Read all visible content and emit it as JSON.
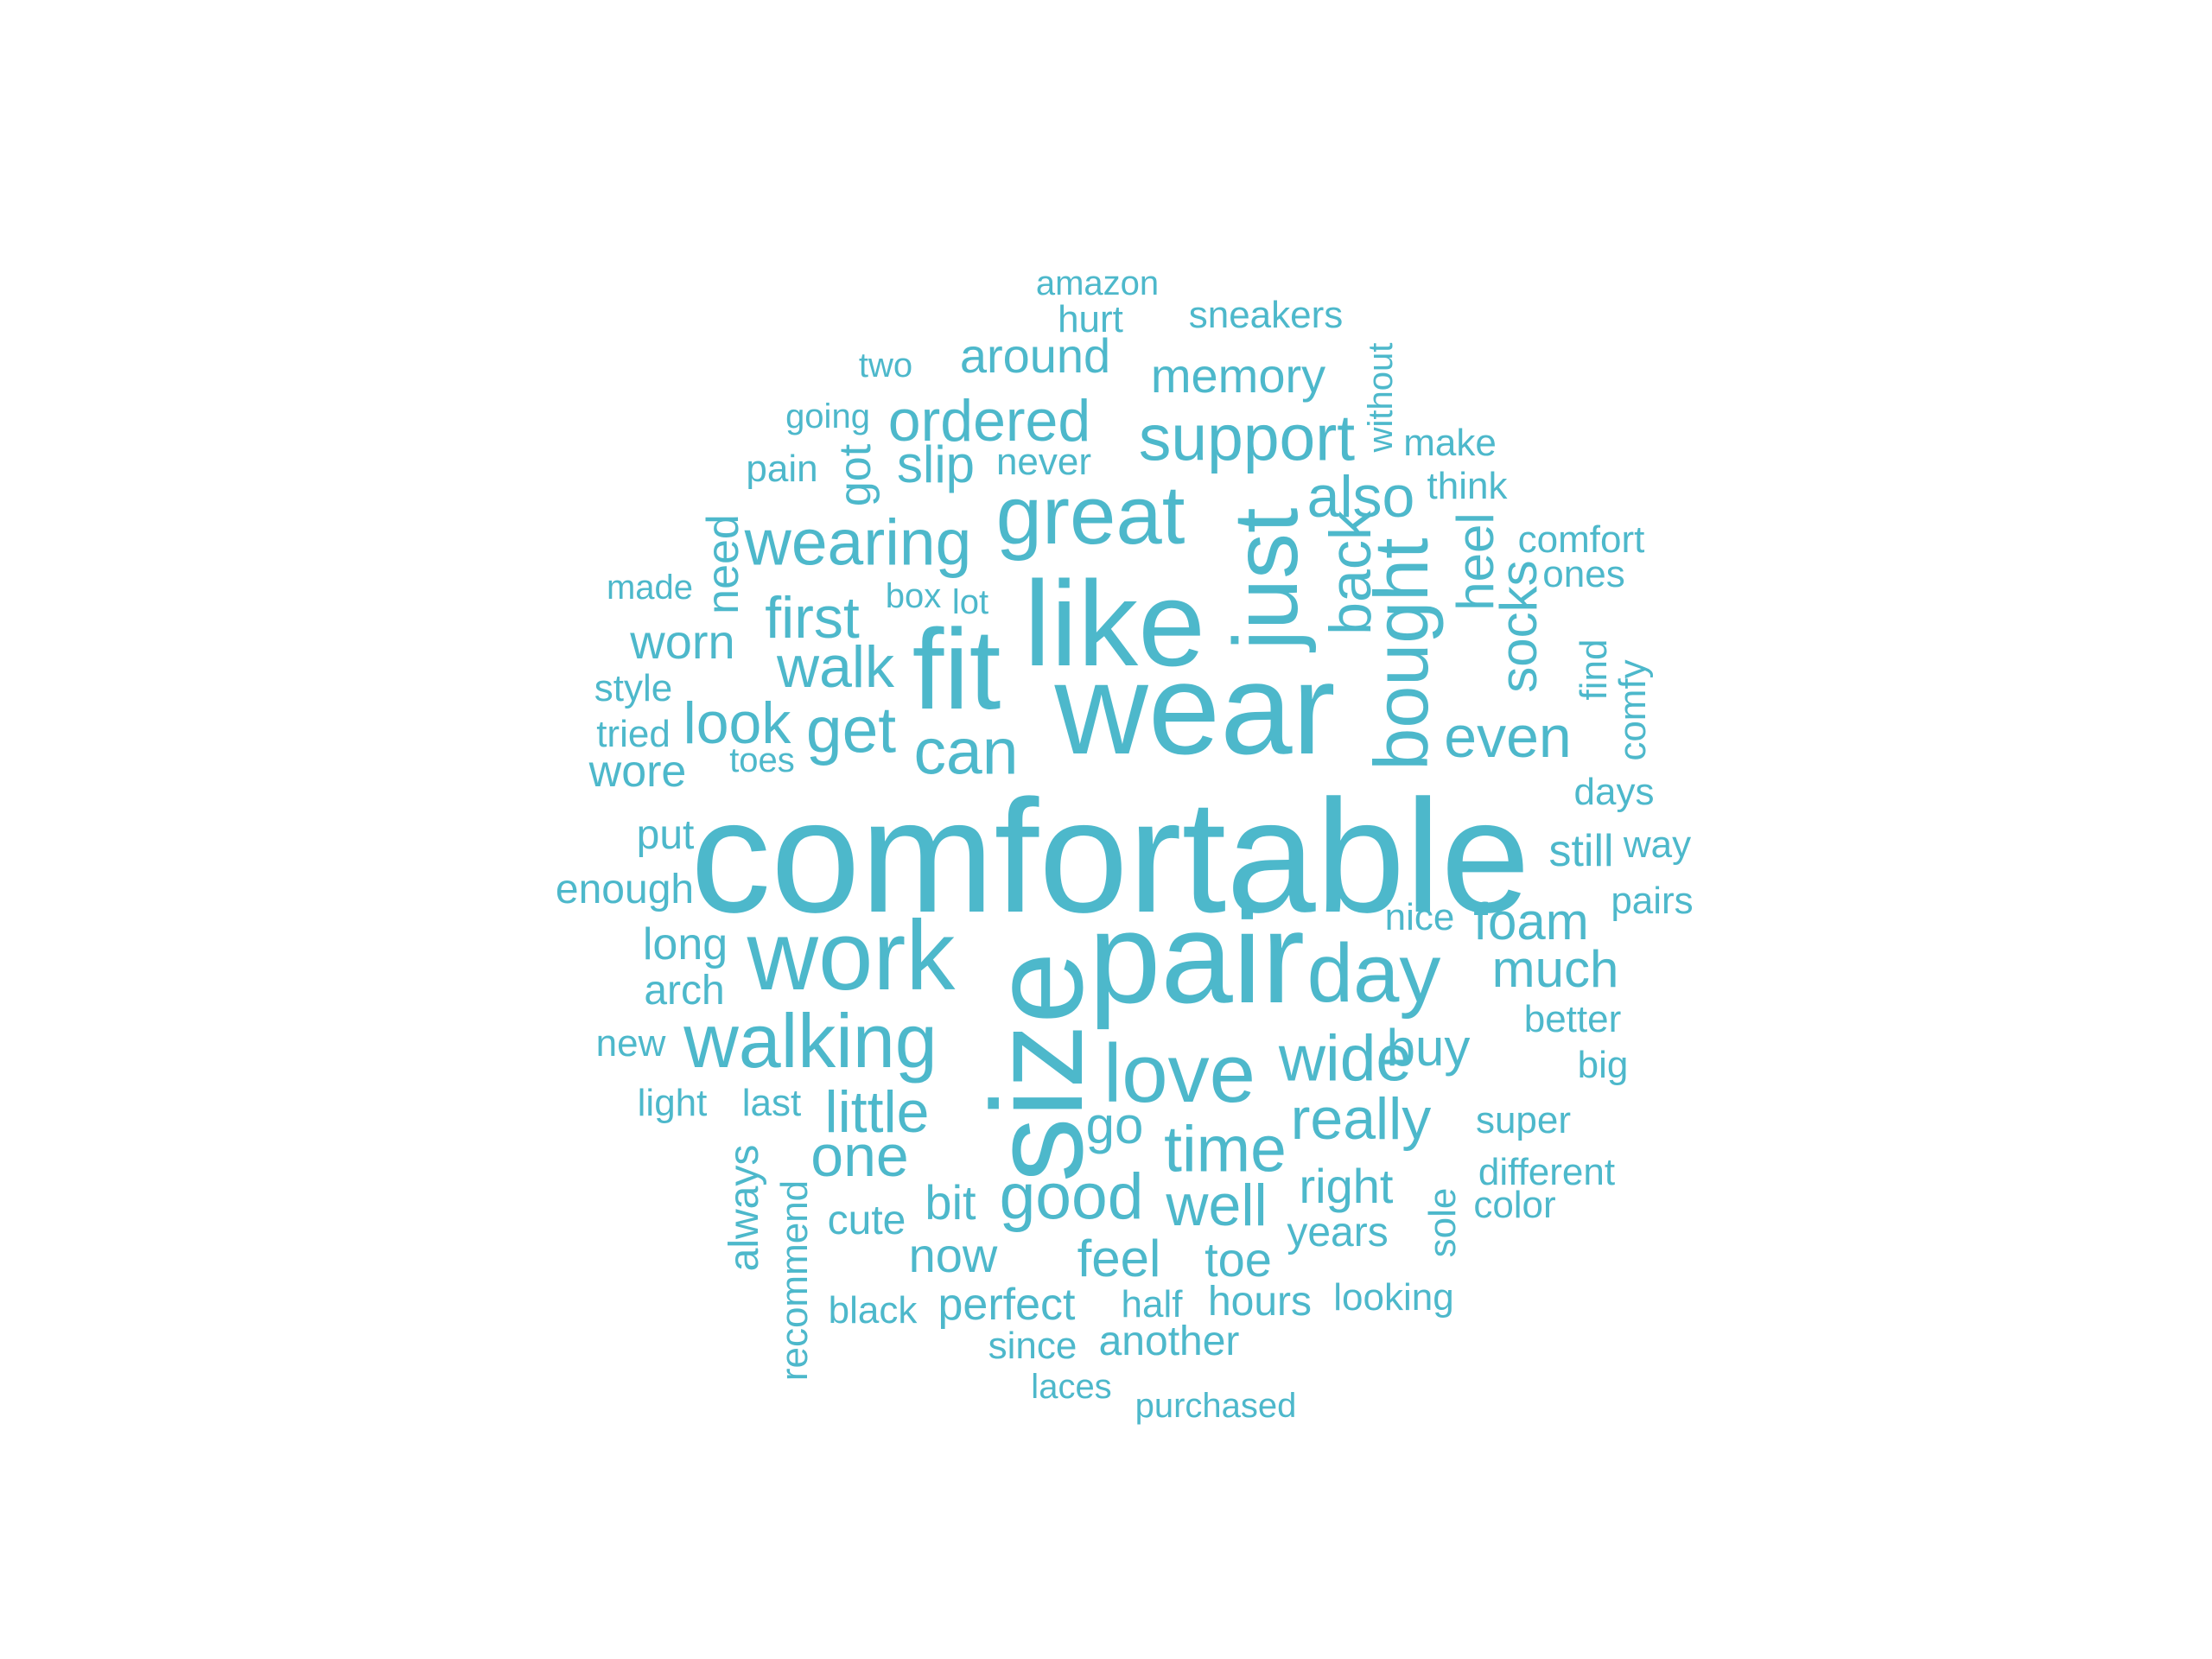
{
  "colors": {
    "background": "#ffffff",
    "word": "#4db8cb"
  },
  "words": [
    {
      "text": "comfortable",
      "orientation": "horizontal",
      "rank": 1
    },
    {
      "text": "wear",
      "orientation": "horizontal",
      "rank": 2
    },
    {
      "text": "pair",
      "orientation": "horizontal",
      "rank": 3
    },
    {
      "text": "size",
      "orientation": "vertical",
      "rank": 4
    },
    {
      "text": "like",
      "orientation": "horizontal",
      "rank": 5
    },
    {
      "text": "fit",
      "orientation": "horizontal",
      "rank": 6
    },
    {
      "text": "work",
      "orientation": "horizontal",
      "rank": 7
    },
    {
      "text": "just",
      "orientation": "vertical",
      "rank": 8
    },
    {
      "text": "day",
      "orientation": "horizontal",
      "rank": 9
    },
    {
      "text": "great",
      "orientation": "horizontal",
      "rank": 10
    },
    {
      "text": "love",
      "orientation": "horizontal",
      "rank": 11
    },
    {
      "text": "walking",
      "orientation": "horizontal",
      "rank": 12
    },
    {
      "text": "bought",
      "orientation": "vertical",
      "rank": 13
    },
    {
      "text": "wearing",
      "orientation": "horizontal",
      "rank": 14
    },
    {
      "text": "support",
      "orientation": "horizontal",
      "rank": 15
    },
    {
      "text": "time",
      "orientation": "horizontal",
      "rank": 16
    },
    {
      "text": "good",
      "orientation": "horizontal",
      "rank": 17
    },
    {
      "text": "wide",
      "orientation": "horizontal",
      "rank": 18
    },
    {
      "text": "get",
      "orientation": "horizontal",
      "rank": 19
    },
    {
      "text": "can",
      "orientation": "horizontal",
      "rank": 20
    },
    {
      "text": "walk",
      "orientation": "horizontal",
      "rank": 21
    },
    {
      "text": "first",
      "orientation": "horizontal",
      "rank": 22
    },
    {
      "text": "ordered",
      "orientation": "horizontal",
      "rank": 23
    },
    {
      "text": "really",
      "orientation": "horizontal",
      "rank": 24
    },
    {
      "text": "well",
      "orientation": "horizontal",
      "rank": 25
    },
    {
      "text": "back",
      "orientation": "vertical",
      "rank": 26
    },
    {
      "text": "also",
      "orientation": "horizontal",
      "rank": 27
    },
    {
      "text": "little",
      "orientation": "horizontal",
      "rank": 28
    },
    {
      "text": "one",
      "orientation": "horizontal",
      "rank": 29
    },
    {
      "text": "even",
      "orientation": "horizontal",
      "rank": 30
    },
    {
      "text": "look",
      "orientation": "horizontal",
      "rank": 31
    },
    {
      "text": "foam",
      "orientation": "horizontal",
      "rank": 32
    },
    {
      "text": "much",
      "orientation": "horizontal",
      "rank": 33
    },
    {
      "text": "buy",
      "orientation": "horizontal",
      "rank": 34
    },
    {
      "text": "go",
      "orientation": "horizontal",
      "rank": 35
    },
    {
      "text": "around",
      "orientation": "horizontal",
      "rank": 36
    },
    {
      "text": "memory",
      "orientation": "horizontal",
      "rank": 37
    },
    {
      "text": "slip",
      "orientation": "horizontal",
      "rank": 38
    },
    {
      "text": "socks",
      "orientation": "vertical",
      "rank": 39
    },
    {
      "text": "heel",
      "orientation": "vertical",
      "rank": 40
    },
    {
      "text": "worn",
      "orientation": "horizontal",
      "rank": 41
    },
    {
      "text": "right",
      "orientation": "horizontal",
      "rank": 42
    },
    {
      "text": "feel",
      "orientation": "horizontal",
      "rank": 43
    },
    {
      "text": "toe",
      "orientation": "horizontal",
      "rank": 44
    },
    {
      "text": "now",
      "orientation": "horizontal",
      "rank": 45
    },
    {
      "text": "bit",
      "orientation": "horizontal",
      "rank": 46
    },
    {
      "text": "perfect",
      "orientation": "horizontal",
      "rank": 47
    },
    {
      "text": "still",
      "orientation": "horizontal",
      "rank": 48
    },
    {
      "text": "long",
      "orientation": "horizontal",
      "rank": 49
    },
    {
      "text": "got",
      "orientation": "vertical",
      "rank": 50
    },
    {
      "text": "need",
      "orientation": "vertical",
      "rank": 51
    },
    {
      "text": "wore",
      "orientation": "horizontal",
      "rank": 52
    },
    {
      "text": "arch",
      "orientation": "horizontal",
      "rank": 53
    },
    {
      "text": "put",
      "orientation": "horizontal",
      "rank": 54
    },
    {
      "text": "years",
      "orientation": "horizontal",
      "rank": 55
    },
    {
      "text": "hours",
      "orientation": "horizontal",
      "rank": 56
    },
    {
      "text": "another",
      "orientation": "horizontal",
      "rank": 57
    },
    {
      "text": "cute",
      "orientation": "horizontal",
      "rank": 58
    },
    {
      "text": "always",
      "orientation": "vertical",
      "rank": 59
    },
    {
      "text": "enough",
      "orientation": "horizontal",
      "rank": 60
    },
    {
      "text": "looking",
      "orientation": "horizontal",
      "rank": 61
    },
    {
      "text": "comfort",
      "orientation": "horizontal",
      "rank": 62
    },
    {
      "text": "sneakers",
      "orientation": "horizontal",
      "rank": 63
    },
    {
      "text": "different",
      "orientation": "horizontal",
      "rank": 64
    },
    {
      "text": "last",
      "orientation": "horizontal",
      "rank": 65
    },
    {
      "text": "nice",
      "orientation": "horizontal",
      "rank": 66
    },
    {
      "text": "better",
      "orientation": "horizontal",
      "rank": 67
    },
    {
      "text": "super",
      "orientation": "horizontal",
      "rank": 68
    },
    {
      "text": "days",
      "orientation": "horizontal",
      "rank": 69
    },
    {
      "text": "pairs",
      "orientation": "horizontal",
      "rank": 70
    },
    {
      "text": "think",
      "orientation": "horizontal",
      "rank": 71
    },
    {
      "text": "make",
      "orientation": "horizontal",
      "rank": 72
    },
    {
      "text": "pain",
      "orientation": "horizontal",
      "rank": 73
    },
    {
      "text": "never",
      "orientation": "horizontal",
      "rank": 74
    },
    {
      "text": "tried",
      "orientation": "horizontal",
      "rank": 75
    },
    {
      "text": "style",
      "orientation": "horizontal",
      "rank": 76
    },
    {
      "text": "ones",
      "orientation": "horizontal",
      "rank": 77
    },
    {
      "text": "find",
      "orientation": "vertical",
      "rank": 78
    },
    {
      "text": "comfy",
      "orientation": "vertical",
      "rank": 79
    },
    {
      "text": "color",
      "orientation": "horizontal",
      "rank": 80
    },
    {
      "text": "sole",
      "orientation": "vertical",
      "rank": 81
    },
    {
      "text": "black",
      "orientation": "horizontal",
      "rank": 82
    },
    {
      "text": "since",
      "orientation": "horizontal",
      "rank": 83
    },
    {
      "text": "half",
      "orientation": "horizontal",
      "rank": 84
    },
    {
      "text": "recommend",
      "orientation": "vertical",
      "rank": 85
    },
    {
      "text": "light",
      "orientation": "horizontal",
      "rank": 86
    },
    {
      "text": "new",
      "orientation": "horizontal",
      "rank": 87
    },
    {
      "text": "big",
      "orientation": "horizontal",
      "rank": 88
    },
    {
      "text": "way",
      "orientation": "horizontal",
      "rank": 89
    },
    {
      "text": "made",
      "orientation": "horizontal",
      "rank": 90
    },
    {
      "text": "box",
      "orientation": "horizontal",
      "rank": 91
    },
    {
      "text": "lot",
      "orientation": "horizontal",
      "rank": 92
    },
    {
      "text": "toes",
      "orientation": "horizontal",
      "rank": 93
    },
    {
      "text": "two",
      "orientation": "horizontal",
      "rank": 94
    },
    {
      "text": "going",
      "orientation": "horizontal",
      "rank": 95
    },
    {
      "text": "hurt",
      "orientation": "horizontal",
      "rank": 96
    },
    {
      "text": "amazon",
      "orientation": "horizontal",
      "rank": 97
    },
    {
      "text": "without",
      "orientation": "vertical",
      "rank": 98
    },
    {
      "text": "laces",
      "orientation": "horizontal",
      "rank": 99
    },
    {
      "text": "purchased",
      "orientation": "horizontal",
      "rank": 100
    }
  ]
}
